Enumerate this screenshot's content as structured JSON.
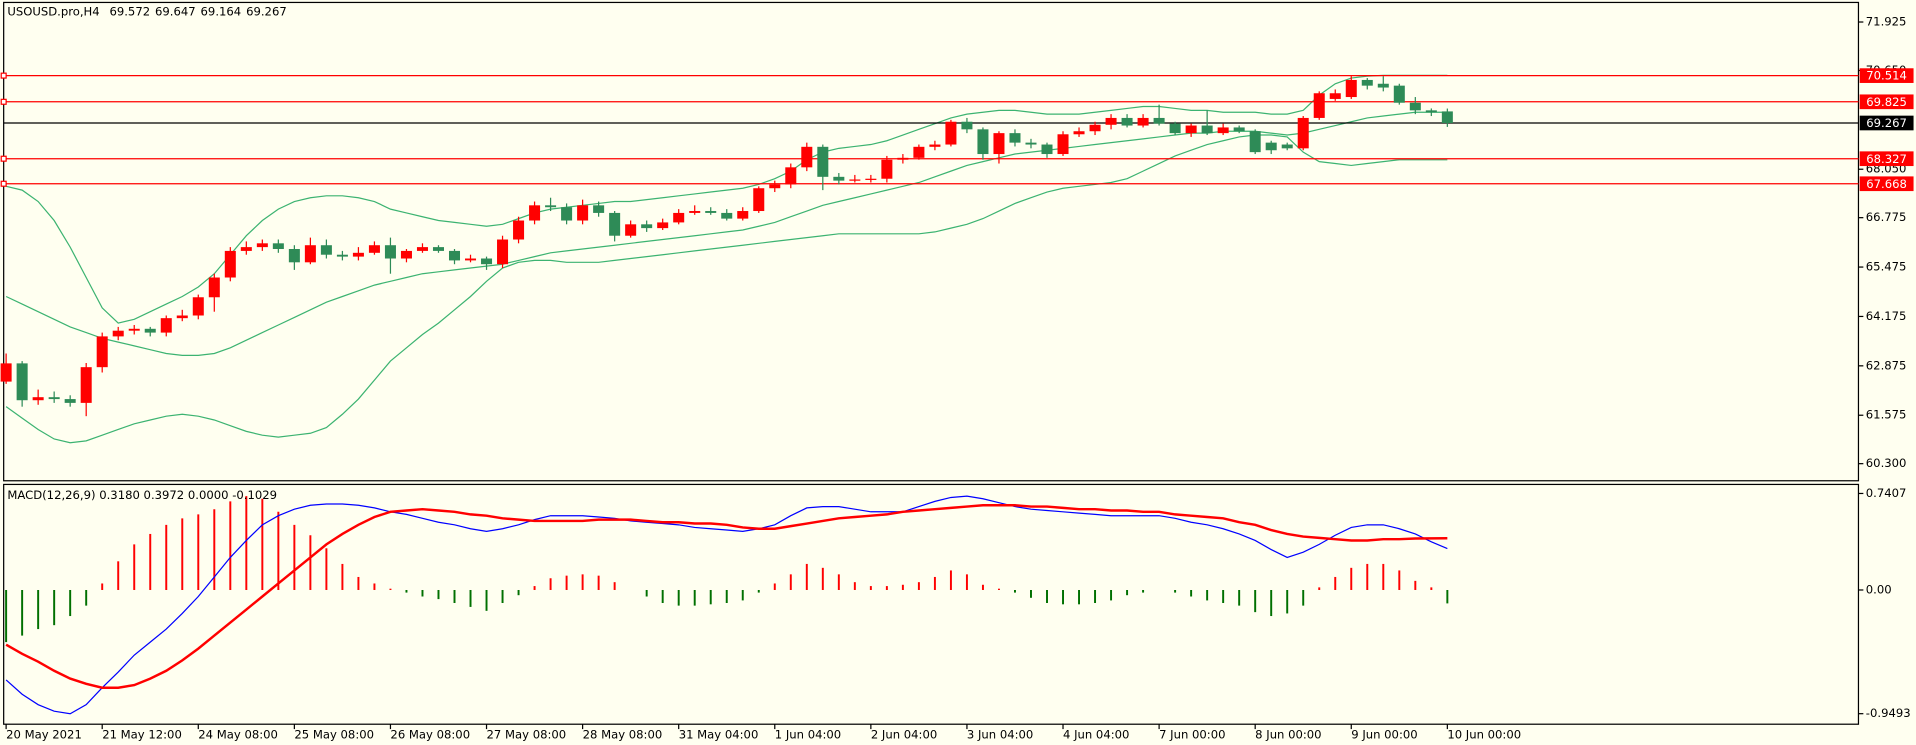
{
  "chart_data": [
    {
      "type": "candlestick",
      "title": "USOUSD.pro,H4",
      "ohlc": [
        69.572,
        69.647,
        69.164,
        69.267
      ],
      "open": [
        62.46,
        62.94,
        61.97,
        62.05,
        62.0,
        61.9,
        62.84,
        63.65,
        63.8,
        63.85,
        63.75,
        64.13,
        64.2,
        64.68,
        65.2,
        65.9,
        66.0,
        66.1,
        65.95,
        65.6,
        66.05,
        65.8,
        65.75,
        65.85,
        66.05,
        65.7,
        65.9,
        66.0,
        65.9,
        65.65,
        65.7,
        65.55,
        66.2,
        66.7,
        67.1,
        67.05,
        66.7,
        67.1,
        66.9,
        66.3,
        66.6,
        66.5,
        66.65,
        66.9,
        66.95,
        66.9,
        66.75,
        66.95,
        67.55,
        67.65,
        68.1,
        68.64,
        67.85,
        67.75,
        67.78,
        67.8,
        68.3,
        68.35,
        68.64,
        68.7,
        69.3,
        69.1,
        68.45,
        69.0,
        68.75,
        68.7,
        68.45,
        68.97,
        69.05,
        69.22,
        69.4,
        69.2,
        69.4,
        69.25,
        69.0,
        69.2,
        69.0,
        69.15,
        69.05,
        68.75,
        68.7,
        68.6,
        69.4,
        69.9,
        69.95,
        70.4,
        70.3,
        70.25,
        69.8,
        69.6,
        69.572
      ],
      "high": [
        63.2,
        63.0,
        62.25,
        62.2,
        62.1,
        62.95,
        63.75,
        63.9,
        63.95,
        63.9,
        64.2,
        64.35,
        64.75,
        65.3,
        66.0,
        66.15,
        66.2,
        66.2,
        66.05,
        66.25,
        66.2,
        65.9,
        66.0,
        66.15,
        66.25,
        65.95,
        66.1,
        66.05,
        65.95,
        65.8,
        65.75,
        66.3,
        66.8,
        67.2,
        67.3,
        67.15,
        67.25,
        67.2,
        66.95,
        66.7,
        66.7,
        66.75,
        67.0,
        67.1,
        67.05,
        67.0,
        67.05,
        67.6,
        67.75,
        68.2,
        68.75,
        68.7,
        67.95,
        67.9,
        67.9,
        68.4,
        68.45,
        68.7,
        68.8,
        69.35,
        69.4,
        69.15,
        69.05,
        69.1,
        68.85,
        68.75,
        69.05,
        69.15,
        69.3,
        69.5,
        69.5,
        69.5,
        69.75,
        69.3,
        69.25,
        69.6,
        69.25,
        69.2,
        69.1,
        68.8,
        68.75,
        69.45,
        70.1,
        70.15,
        70.5,
        70.45,
        70.5,
        70.3,
        69.95,
        69.65,
        69.647
      ],
      "low": [
        62.4,
        61.8,
        61.85,
        61.9,
        61.8,
        61.55,
        62.7,
        63.55,
        63.7,
        63.65,
        63.65,
        64.05,
        64.1,
        64.3,
        65.1,
        65.8,
        65.9,
        65.85,
        65.4,
        65.55,
        65.7,
        65.65,
        65.65,
        65.8,
        65.3,
        65.6,
        65.85,
        65.85,
        65.55,
        65.6,
        65.4,
        65.45,
        66.1,
        66.6,
        66.95,
        66.6,
        66.6,
        66.8,
        66.15,
        66.25,
        66.4,
        66.45,
        66.6,
        66.85,
        66.85,
        66.7,
        66.7,
        66.9,
        67.45,
        67.55,
        68.0,
        67.5,
        67.65,
        67.7,
        67.7,
        67.7,
        68.2,
        68.3,
        68.55,
        68.65,
        69.0,
        68.3,
        68.2,
        68.65,
        68.6,
        68.35,
        68.4,
        68.9,
        68.95,
        69.1,
        69.15,
        69.15,
        69.2,
        68.95,
        68.9,
        68.95,
        68.95,
        69.0,
        68.45,
        68.45,
        68.55,
        68.55,
        69.35,
        69.85,
        69.9,
        70.15,
        70.1,
        69.75,
        69.5,
        69.45,
        69.164
      ],
      "close": [
        62.94,
        61.97,
        62.05,
        62.0,
        61.9,
        62.84,
        63.65,
        63.8,
        63.85,
        63.75,
        64.13,
        64.2,
        64.68,
        65.2,
        65.9,
        66.0,
        66.1,
        65.95,
        65.6,
        66.05,
        65.8,
        65.75,
        65.85,
        66.05,
        65.7,
        65.9,
        66.0,
        65.9,
        65.65,
        65.7,
        65.55,
        66.2,
        66.7,
        67.1,
        67.05,
        66.7,
        67.1,
        66.9,
        66.3,
        66.6,
        66.5,
        66.65,
        66.9,
        66.95,
        66.9,
        66.75,
        66.95,
        67.55,
        67.65,
        68.1,
        68.64,
        67.85,
        67.75,
        67.78,
        67.8,
        68.3,
        68.35,
        68.64,
        68.7,
        69.3,
        69.1,
        68.45,
        69.0,
        68.75,
        68.7,
        68.45,
        68.97,
        69.05,
        69.22,
        69.4,
        69.2,
        69.4,
        69.25,
        69.0,
        69.2,
        69.0,
        69.15,
        69.05,
        68.5,
        68.55,
        68.6,
        69.4,
        70.05,
        70.05,
        70.4,
        70.25,
        70.2,
        69.8,
        69.6,
        69.55,
        69.267
      ],
      "up_color": "#ff0000",
      "down_color": "#2e8b57",
      "bands": [
        {
          "color": "#3cb371",
          "values": [
            67.6,
            67.5,
            67.2,
            66.7,
            66.0,
            65.2,
            64.4,
            64.0,
            64.1,
            64.3,
            64.5,
            64.7,
            64.95,
            65.3,
            65.8,
            66.3,
            66.7,
            67.0,
            67.2,
            67.3,
            67.35,
            67.35,
            67.3,
            67.2,
            67.0,
            66.9,
            66.8,
            66.7,
            66.65,
            66.6,
            66.55,
            66.6,
            66.75,
            66.9,
            67.0,
            67.05,
            67.1,
            67.15,
            67.2,
            67.2,
            67.25,
            67.3,
            67.35,
            67.4,
            67.45,
            67.5,
            67.55,
            67.65,
            67.8,
            68.0,
            68.3,
            68.5,
            68.6,
            68.65,
            68.7,
            68.8,
            68.95,
            69.1,
            69.25,
            69.4,
            69.5,
            69.55,
            69.6,
            69.6,
            69.55,
            69.5,
            69.5,
            69.5,
            69.55,
            69.6,
            69.65,
            69.7,
            69.7,
            69.65,
            69.6,
            69.6,
            69.55,
            69.55,
            69.55,
            69.5,
            69.5,
            69.6,
            70.0,
            70.3,
            70.45,
            70.5,
            70.52,
            70.52,
            70.52,
            70.52,
            70.52
          ]
        },
        {
          "color": "#3cb371",
          "values": [
            64.7,
            64.5,
            64.3,
            64.1,
            63.9,
            63.75,
            63.6,
            63.5,
            63.4,
            63.3,
            63.2,
            63.15,
            63.15,
            63.2,
            63.35,
            63.55,
            63.75,
            63.95,
            64.15,
            64.35,
            64.55,
            64.7,
            64.85,
            65.0,
            65.1,
            65.2,
            65.3,
            65.35,
            65.4,
            65.45,
            65.5,
            65.55,
            65.65,
            65.75,
            65.85,
            65.9,
            65.95,
            66.0,
            66.05,
            66.1,
            66.15,
            66.2,
            66.25,
            66.3,
            66.35,
            66.4,
            66.45,
            66.55,
            66.65,
            66.8,
            66.95,
            67.1,
            67.2,
            67.3,
            67.4,
            67.5,
            67.6,
            67.7,
            67.85,
            68.0,
            68.15,
            68.25,
            68.35,
            68.45,
            68.5,
            68.55,
            68.6,
            68.65,
            68.7,
            68.75,
            68.8,
            68.85,
            68.9,
            68.95,
            69.0,
            69.0,
            69.05,
            69.05,
            69.05,
            69.0,
            68.95,
            69.0,
            69.1,
            69.2,
            69.3,
            69.4,
            69.45,
            69.5,
            69.55,
            69.55,
            69.55
          ]
        },
        {
          "color": "#3cb371",
          "values": [
            61.8,
            61.5,
            61.2,
            60.95,
            60.85,
            60.9,
            61.05,
            61.2,
            61.35,
            61.45,
            61.55,
            61.6,
            61.55,
            61.45,
            61.3,
            61.15,
            61.05,
            61.0,
            61.05,
            61.1,
            61.25,
            61.6,
            62.0,
            62.5,
            63.0,
            63.35,
            63.7,
            64.0,
            64.35,
            64.7,
            65.1,
            65.45,
            65.6,
            65.65,
            65.65,
            65.6,
            65.6,
            65.6,
            65.65,
            65.7,
            65.75,
            65.8,
            65.85,
            65.9,
            65.95,
            66.0,
            66.05,
            66.1,
            66.15,
            66.2,
            66.25,
            66.3,
            66.35,
            66.35,
            66.35,
            66.35,
            66.35,
            66.35,
            66.4,
            66.5,
            66.6,
            66.75,
            66.95,
            67.15,
            67.3,
            67.45,
            67.55,
            67.6,
            67.65,
            67.7,
            67.8,
            68.0,
            68.2,
            68.4,
            68.55,
            68.7,
            68.8,
            68.9,
            68.95,
            68.95,
            68.9,
            68.5,
            68.25,
            68.2,
            68.15,
            68.2,
            68.25,
            68.3,
            68.3,
            68.3,
            68.3
          ]
        }
      ],
      "levels": [
        {
          "value": 70.514,
          "color": "#ff0000"
        },
        {
          "value": 69.825,
          "color": "#ff0000"
        },
        {
          "value": 68.327,
          "color": "#ff0000"
        },
        {
          "value": 67.668,
          "color": "#ff0000"
        }
      ],
      "last_price": {
        "value": 69.267,
        "color": "#000000"
      },
      "ylim": [
        59.85,
        72.44
      ],
      "yticks": [
        71.925,
        {
          "value": 70.65,
          "label": "70.650"
        },
        {
          "value": 68.05,
          "label": "68.050"
        },
        66.775,
        65.475,
        64.175,
        62.875,
        61.575,
        {
          "value": 60.3,
          "label": "60.300"
        }
      ]
    },
    {
      "type": "macd",
      "title": "MACD(12,26,9) 0.3180 0.3972 0.0000 -0.1029",
      "categories": [
        "20 May 2021",
        null,
        null,
        null,
        null,
        null,
        "21 May 12:00",
        null,
        null,
        null,
        null,
        null,
        "24 May 08:00",
        null,
        null,
        null,
        null,
        null,
        "25 May 08:00",
        null,
        null,
        null,
        null,
        null,
        "26 May 08:00",
        null,
        null,
        null,
        null,
        null,
        "27 May 08:00",
        null,
        null,
        null,
        null,
        null,
        "28 May 08:00",
        null,
        null,
        null,
        null,
        null,
        "31 May 04:00",
        null,
        null,
        null,
        null,
        null,
        "1 Jun 04:00",
        null,
        null,
        null,
        null,
        null,
        "2 Jun 04:00",
        null,
        null,
        null,
        null,
        null,
        "3 Jun 04:00",
        null,
        null,
        null,
        null,
        null,
        "4 Jun 04:00",
        null,
        null,
        null,
        null,
        null,
        "7 Jun 00:00",
        null,
        null,
        null,
        null,
        null,
        "8 Jun 00:00",
        null,
        null,
        null,
        null,
        null,
        "9 Jun 00:00",
        null,
        null,
        null,
        null,
        null,
        "10 Jun 00:00"
      ],
      "histogram": {
        "pos_color": "#ff0000",
        "neg_color": "#007000",
        "values": [
          -0.4,
          -0.35,
          -0.3,
          -0.27,
          -0.2,
          -0.12,
          0.05,
          0.22,
          0.35,
          0.43,
          0.5,
          0.55,
          0.58,
          0.62,
          0.68,
          0.72,
          0.7,
          0.6,
          0.5,
          0.42,
          0.32,
          0.2,
          0.1,
          0.05,
          0.01,
          -0.02,
          -0.05,
          -0.07,
          -0.1,
          -0.13,
          -0.16,
          -0.1,
          -0.04,
          0.03,
          0.09,
          0.11,
          0.12,
          0.11,
          0.06,
          0.0,
          -0.05,
          -0.1,
          -0.12,
          -0.12,
          -0.11,
          -0.1,
          -0.08,
          -0.02,
          0.05,
          0.12,
          0.2,
          0.17,
          0.12,
          0.06,
          0.03,
          0.03,
          0.04,
          0.06,
          0.1,
          0.15,
          0.12,
          0.04,
          0.01,
          -0.02,
          -0.06,
          -0.1,
          -0.11,
          -0.11,
          -0.1,
          -0.08,
          -0.04,
          -0.02,
          0.0,
          -0.02,
          -0.05,
          -0.08,
          -0.1,
          -0.12,
          -0.17,
          -0.2,
          -0.18,
          -0.12,
          0.02,
          0.1,
          0.17,
          0.2,
          0.2,
          0.15,
          0.07,
          0.02,
          -0.1029
        ]
      },
      "series": [
        {
          "color": "#0000ff",
          "width": 1,
          "values": [
            -0.69,
            -0.8,
            -0.88,
            -0.93,
            -0.95,
            -0.88,
            -0.75,
            -0.63,
            -0.5,
            -0.4,
            -0.3,
            -0.18,
            -0.05,
            0.1,
            0.25,
            0.38,
            0.5,
            0.57,
            0.62,
            0.65,
            0.66,
            0.66,
            0.65,
            0.63,
            0.6,
            0.58,
            0.55,
            0.52,
            0.5,
            0.47,
            0.45,
            0.47,
            0.5,
            0.54,
            0.57,
            0.57,
            0.57,
            0.56,
            0.55,
            0.53,
            0.52,
            0.51,
            0.5,
            0.48,
            0.47,
            0.46,
            0.45,
            0.47,
            0.5,
            0.57,
            0.63,
            0.64,
            0.64,
            0.62,
            0.6,
            0.6,
            0.6,
            0.64,
            0.68,
            0.71,
            0.72,
            0.7,
            0.67,
            0.64,
            0.62,
            0.61,
            0.6,
            0.59,
            0.58,
            0.57,
            0.57,
            0.57,
            0.57,
            0.55,
            0.52,
            0.5,
            0.47,
            0.43,
            0.38,
            0.31,
            0.25,
            0.29,
            0.35,
            0.42,
            0.48,
            0.5,
            0.5,
            0.47,
            0.43,
            0.37,
            0.318
          ]
        },
        {
          "color": "#ff0000",
          "width": 2,
          "values": [
            -0.42,
            -0.49,
            -0.55,
            -0.62,
            -0.68,
            -0.72,
            -0.75,
            -0.75,
            -0.73,
            -0.68,
            -0.62,
            -0.54,
            -0.45,
            -0.35,
            -0.25,
            -0.15,
            -0.05,
            0.05,
            0.15,
            0.25,
            0.35,
            0.43,
            0.5,
            0.56,
            0.6,
            0.61,
            0.62,
            0.61,
            0.6,
            0.58,
            0.57,
            0.55,
            0.54,
            0.53,
            0.53,
            0.53,
            0.53,
            0.54,
            0.54,
            0.54,
            0.53,
            0.52,
            0.52,
            0.51,
            0.51,
            0.5,
            0.48,
            0.47,
            0.47,
            0.49,
            0.51,
            0.53,
            0.55,
            0.56,
            0.57,
            0.58,
            0.6,
            0.61,
            0.62,
            0.63,
            0.64,
            0.65,
            0.65,
            0.65,
            0.64,
            0.64,
            0.63,
            0.62,
            0.62,
            0.61,
            0.61,
            0.6,
            0.6,
            0.58,
            0.57,
            0.56,
            0.55,
            0.52,
            0.5,
            0.46,
            0.43,
            0.41,
            0.4,
            0.39,
            0.38,
            0.38,
            0.39,
            0.39,
            0.395,
            0.396,
            0.3972
          ]
        }
      ],
      "ylim": [
        -1.03,
        0.81
      ],
      "yticks": [
        0.7407,
        {
          "value": 0,
          "label": "0.00"
        },
        -0.9493
      ]
    }
  ]
}
